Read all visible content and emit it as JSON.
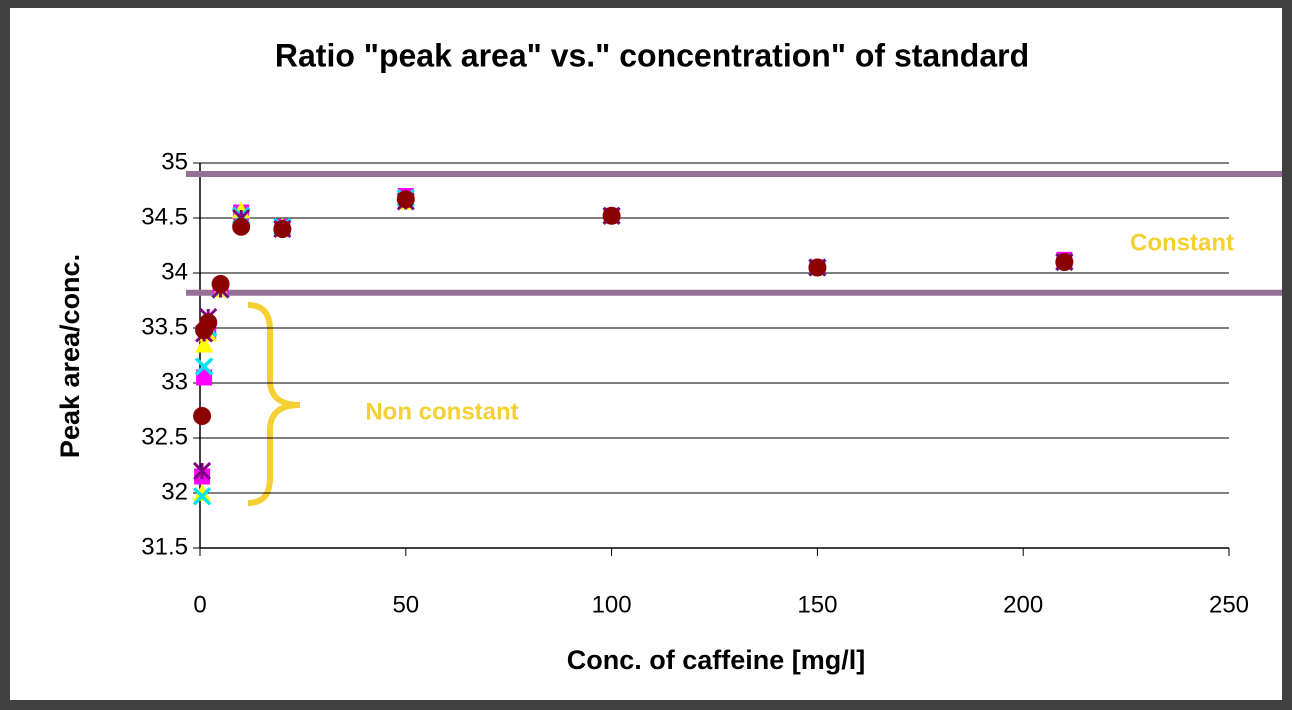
{
  "chart_data": {
    "type": "scatter",
    "title": "Ratio \"peak area\" vs.\" concentration\" of standard",
    "x_label": "Conc. of caffeine [mg/l]",
    "y_label": "Peak area/conc.",
    "x": [
      0.5,
      1,
      2,
      5,
      10,
      20,
      50,
      100,
      150,
      210
    ],
    "series": [
      {
        "color": "#ff00ff",
        "marker": "square",
        "values": [
          32.15,
          33.05,
          33.45,
          33.85,
          34.55,
          34.42,
          34.7,
          34.52,
          34.05,
          34.12
        ]
      },
      {
        "color": "#ffff00",
        "marker": "triangle",
        "values": [
          32.0,
          33.35,
          33.45,
          33.85,
          34.57,
          34.42,
          34.65,
          34.52,
          34.05,
          34.1
        ]
      },
      {
        "color": "#00e5ee",
        "marker": "x",
        "values": [
          31.97,
          33.15,
          33.5,
          33.85,
          34.52,
          34.42,
          34.68,
          34.52,
          34.05,
          34.1
        ]
      },
      {
        "color": "#800080",
        "marker": "star",
        "values": [
          32.2,
          33.45,
          33.6,
          33.85,
          34.5,
          34.4,
          34.65,
          34.52,
          34.05,
          34.1
        ]
      },
      {
        "color": "#8b0000",
        "marker": "circle",
        "values": [
          32.7,
          33.48,
          33.55,
          33.9,
          34.42,
          34.4,
          34.67,
          34.52,
          34.05,
          34.1
        ]
      }
    ],
    "hlines": [
      34.9,
      33.82
    ],
    "hline_color": "#957095",
    "annotations": [
      "Constant",
      "Non constant"
    ],
    "annotation_color": "#f5d033",
    "xlim": [
      0,
      250
    ],
    "xticks": [
      0,
      50,
      100,
      150,
      200,
      250
    ],
    "ylim": [
      31.5,
      35
    ],
    "yticks": [
      31.5,
      32,
      32.5,
      33,
      33.5,
      34,
      34.5,
      35
    ],
    "grid": true
  }
}
